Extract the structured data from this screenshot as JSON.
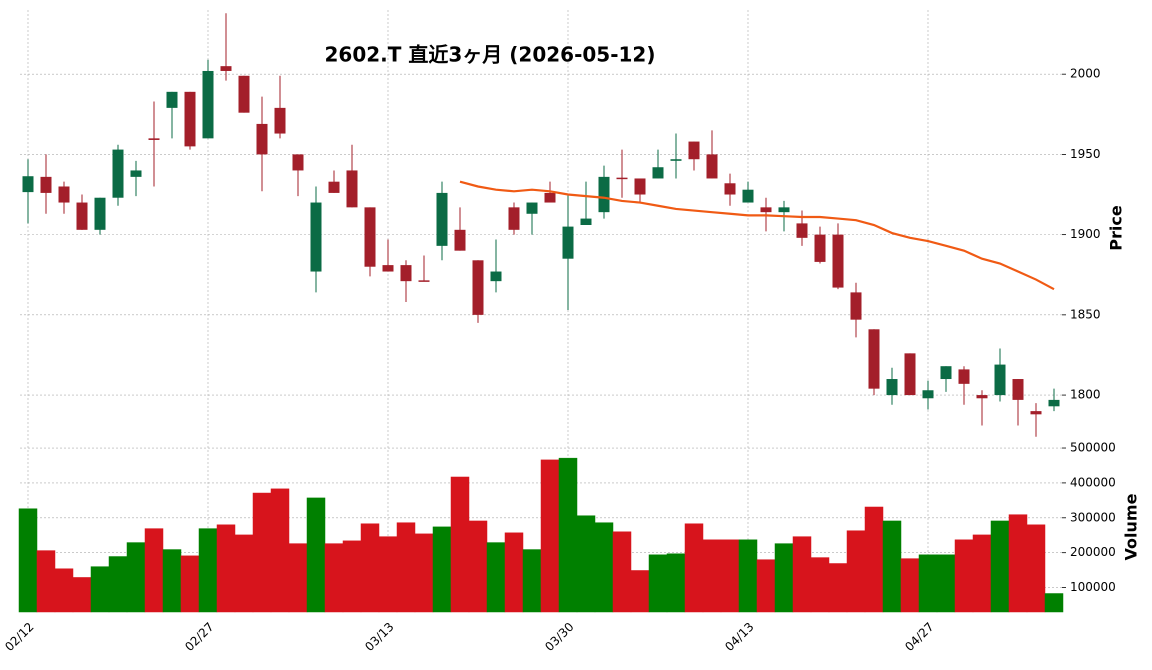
{
  "chart_data": [
    {
      "type": "candlestick",
      "title": "2602.T  直近3ヶ月  (2026-05-12)",
      "y_label": "Price",
      "open": [
        1926.5,
        1936,
        1930,
        1920,
        1903,
        1923,
        1936,
        1960,
        1979,
        1989,
        1960,
        2005,
        1999,
        1969,
        1979,
        1950,
        1877,
        1933,
        1940,
        1917,
        1881,
        1881,
        1871.5,
        1893,
        1903,
        1884,
        1871,
        1917,
        1913,
        1926,
        1885,
        1906,
        1914,
        1935.5,
        1935,
        1935,
        1946,
        1958,
        1950,
        1932,
        1920,
        1917,
        1914,
        1907,
        1900,
        1900,
        1864,
        1841,
        1800,
        1826,
        1798,
        1810,
        1816,
        1800,
        1800,
        1810,
        1790,
        1793
      ],
      "high": [
        1947,
        1950,
        1933,
        1925,
        1923,
        1956,
        1946,
        1983,
        1989,
        1989,
        2009,
        2038,
        1999,
        1986,
        1999,
        1950,
        1930,
        1940,
        1956,
        1917,
        1897,
        1884,
        1887,
        1933,
        1917,
        1884,
        1897,
        1920,
        1920,
        1933,
        1925,
        1933,
        1943,
        1953,
        1935,
        1953,
        1963,
        1958,
        1965,
        1938,
        1933,
        1923,
        1921,
        1915,
        1905,
        1907,
        1870,
        1841,
        1817,
        1826,
        1809,
        1818,
        1818,
        1803,
        1829,
        1810,
        1795,
        1804
      ],
      "low": [
        1907,
        1913,
        1913,
        1903,
        1900,
        1918,
        1924,
        1930,
        1960,
        1953,
        1960,
        1996,
        1976,
        1927,
        1960,
        1924,
        1864,
        1926,
        1917,
        1874,
        1877,
        1858,
        1871,
        1884,
        1890,
        1845,
        1864,
        1900,
        1900,
        1920,
        1853,
        1906,
        1910,
        1923,
        1920,
        1935,
        1935,
        1940,
        1935,
        1918,
        1920,
        1902,
        1902,
        1893,
        1882,
        1866,
        1836,
        1800,
        1794,
        1800,
        1791,
        1802,
        1794,
        1781,
        1796,
        1781,
        1774,
        1790
      ],
      "close": [
        1936.4,
        1926,
        1920,
        1903,
        1923,
        1953,
        1940,
        1959,
        1989,
        1955,
        2002,
        2002,
        1976,
        1950,
        1963,
        1940,
        1920,
        1926,
        1917,
        1880,
        1877,
        1871,
        1871,
        1926,
        1890,
        1850,
        1877,
        1903,
        1920,
        1920,
        1905,
        1910,
        1936,
        1935,
        1925,
        1942,
        1947,
        1947,
        1935,
        1925,
        1928,
        1914,
        1917,
        1898,
        1883,
        1867,
        1847,
        1804,
        1810,
        1800,
        1803,
        1818,
        1807,
        1798,
        1819,
        1797,
        1788,
        1797
      ],
      "up_color": "#0b6b45",
      "down_color": "#a31f2a",
      "ma": {
        "color": "#f05a14",
        "values": [
          null,
          null,
          null,
          null,
          null,
          null,
          null,
          null,
          null,
          null,
          null,
          null,
          null,
          null,
          null,
          null,
          null,
          null,
          null,
          null,
          null,
          null,
          null,
          null,
          1933,
          1930,
          1928,
          1927,
          1928,
          1927,
          1925,
          1924,
          1923,
          1921,
          1920,
          1918,
          1916,
          1915,
          1914,
          1913,
          1912,
          1912,
          1911.5,
          1911,
          1911,
          1910,
          1909,
          1906,
          1901,
          1898,
          1896,
          1893,
          1890,
          1885,
          1882,
          1877,
          1872,
          1866
        ]
      },
      "ylim": [
        1772,
        2040
      ],
      "yticks": [
        1800,
        1850,
        1900,
        1950,
        2000
      ],
      "grid": true
    },
    {
      "type": "bar",
      "y_label": "Volume",
      "categories": [
        "02/12",
        null,
        null,
        null,
        null,
        null,
        null,
        null,
        null,
        null,
        "02/27",
        null,
        null,
        null,
        null,
        null,
        null,
        null,
        null,
        null,
        "03/13",
        null,
        null,
        null,
        null,
        null,
        null,
        null,
        null,
        null,
        "03/30",
        null,
        null,
        null,
        null,
        null,
        null,
        null,
        null,
        null,
        "04/13",
        null,
        null,
        null,
        null,
        null,
        null,
        null,
        null,
        null,
        "04/27",
        null,
        null,
        null,
        null,
        null,
        null,
        null
      ],
      "values": [
        326000,
        206000,
        154000,
        129000,
        160000,
        189000,
        229000,
        269000,
        209000,
        191000,
        269000,
        280000,
        251000,
        371000,
        383000,
        226000,
        357000,
        226000,
        234000,
        283000,
        246000,
        286000,
        254000,
        274000,
        417000,
        291000,
        229000,
        257000,
        209000,
        466000,
        471000,
        306000,
        286000,
        260000,
        149000,
        194000,
        197000,
        283000,
        237000,
        237000,
        237000,
        180000,
        226000,
        246000,
        186000,
        169000,
        263000,
        331000,
        291000,
        183000,
        194000,
        194000,
        237000,
        251000,
        291000,
        309000,
        280000,
        83000
      ],
      "up_color": "#008000",
      "down_color": "#d7141c",
      "ylim": [
        30000,
        523000
      ],
      "yticks": [
        100000,
        200000,
        300000,
        400000,
        500000
      ],
      "grid": true
    }
  ]
}
